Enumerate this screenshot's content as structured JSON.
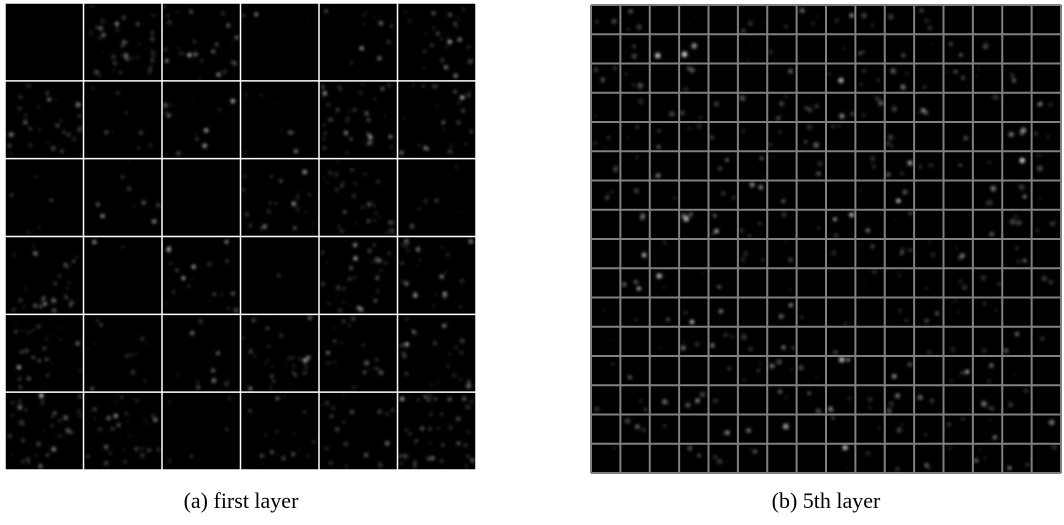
{
  "panels": [
    {
      "caption": "(a) first layer"
    },
    {
      "caption": "(b) 5th layer"
    }
  ]
}
